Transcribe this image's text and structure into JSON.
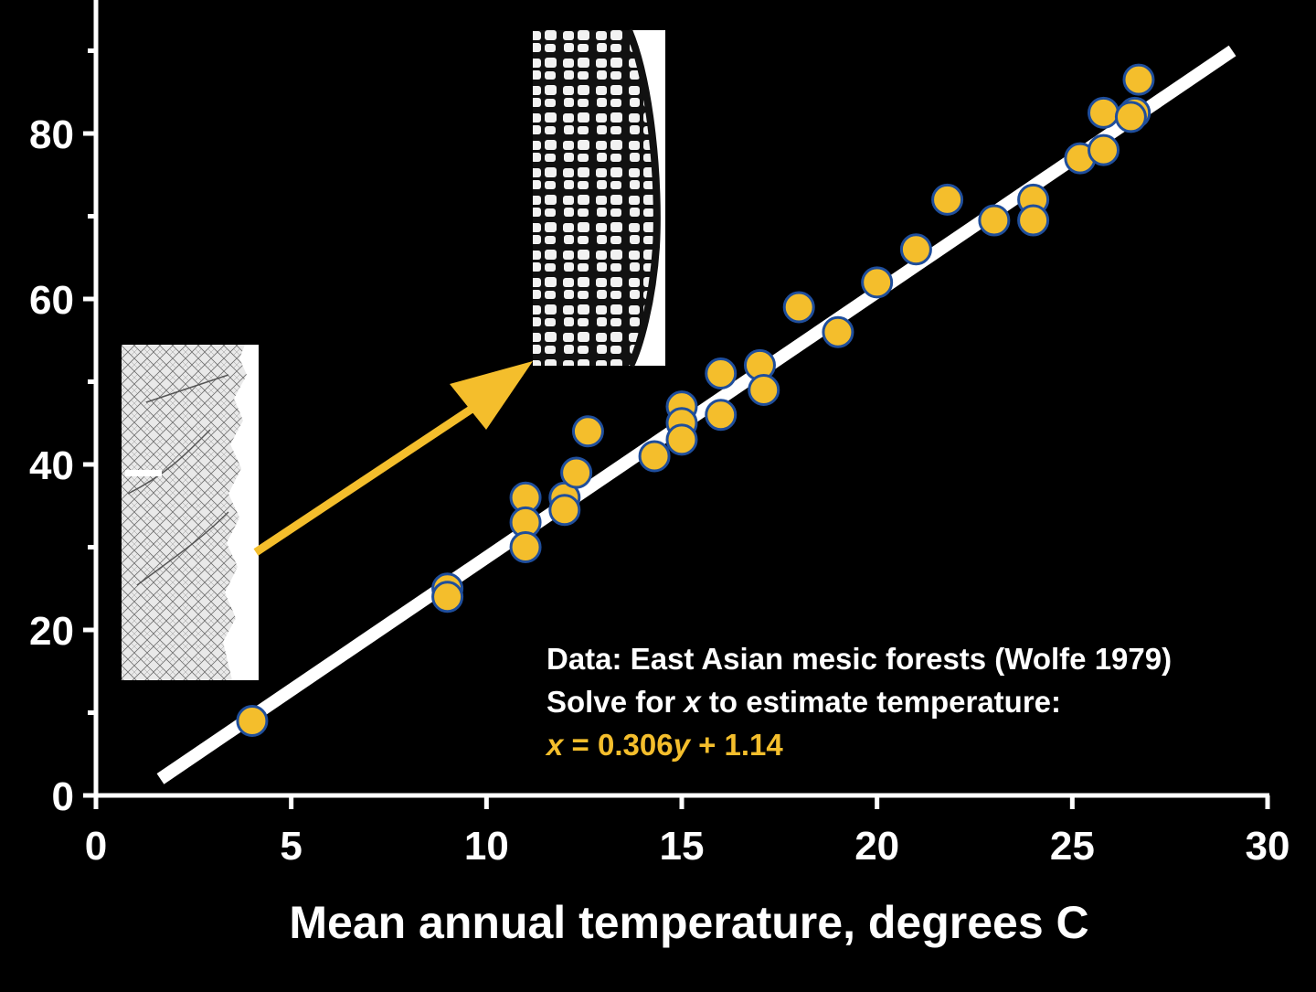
{
  "colors": {
    "background": "#000000",
    "axis": "#ffffff",
    "fit_line": "#ffffff",
    "point_fill": "#f4be2c",
    "point_edge": "#1f4e9c",
    "arrow": "#f4be2c",
    "equation": "#f4be2c"
  },
  "chart_data": {
    "type": "scatter",
    "title": "",
    "xlabel": "Mean annual temperature, degrees C",
    "ylabel": "",
    "xlim": [
      0,
      30
    ],
    "ylim": [
      0,
      95
    ],
    "x_ticks": [
      "0",
      "5",
      "10",
      "15",
      "20",
      "25",
      "30"
    ],
    "y_ticks": [
      "0",
      "20",
      "40",
      "60",
      "80"
    ],
    "grid": false,
    "points": [
      {
        "x": 4.0,
        "y": 9.0
      },
      {
        "x": 9.0,
        "y": 25.0
      },
      {
        "x": 9.0,
        "y": 24.0
      },
      {
        "x": 11.0,
        "y": 36.0
      },
      {
        "x": 11.0,
        "y": 33.0
      },
      {
        "x": 11.0,
        "y": 30.0
      },
      {
        "x": 12.0,
        "y": 36.0
      },
      {
        "x": 12.0,
        "y": 34.5
      },
      {
        "x": 12.3,
        "y": 39.0
      },
      {
        "x": 12.6,
        "y": 44.0
      },
      {
        "x": 14.3,
        "y": 41.0
      },
      {
        "x": 15.0,
        "y": 47.0
      },
      {
        "x": 15.0,
        "y": 45.0
      },
      {
        "x": 15.0,
        "y": 43.0
      },
      {
        "x": 16.0,
        "y": 51.0
      },
      {
        "x": 16.0,
        "y": 46.0
      },
      {
        "x": 17.0,
        "y": 52.0
      },
      {
        "x": 17.1,
        "y": 49.0
      },
      {
        "x": 18.0,
        "y": 59.0
      },
      {
        "x": 19.0,
        "y": 56.0
      },
      {
        "x": 20.0,
        "y": 62.0
      },
      {
        "x": 21.0,
        "y": 66.0
      },
      {
        "x": 21.8,
        "y": 72.0
      },
      {
        "x": 23.0,
        "y": 69.5
      },
      {
        "x": 24.0,
        "y": 72.0
      },
      {
        "x": 24.0,
        "y": 69.5
      },
      {
        "x": 25.2,
        "y": 77.0
      },
      {
        "x": 25.8,
        "y": 82.5
      },
      {
        "x": 25.8,
        "y": 78.0
      },
      {
        "x": 26.6,
        "y": 82.5
      },
      {
        "x": 26.5,
        "y": 82.0
      },
      {
        "x": 26.7,
        "y": 86.5
      }
    ],
    "fit_line": {
      "x": [
        1.65,
        29.1
      ],
      "y": [
        2.0,
        90.0
      ]
    },
    "annotations": {
      "line1": "Data: East Asian mesic forests (Wolfe 1979)",
      "line2_pre": "Solve for ",
      "line2_var": "x",
      "line2_post": " to estimate temperature:",
      "eq_x": "x",
      "eq_mid": " = 0.306",
      "eq_y": "y",
      "eq_end": " + 1.14"
    },
    "insets": [
      {
        "description_icon": "leaf-margin-toothed-image"
      },
      {
        "description_icon": "leaf-margin-smooth-image"
      }
    ]
  }
}
